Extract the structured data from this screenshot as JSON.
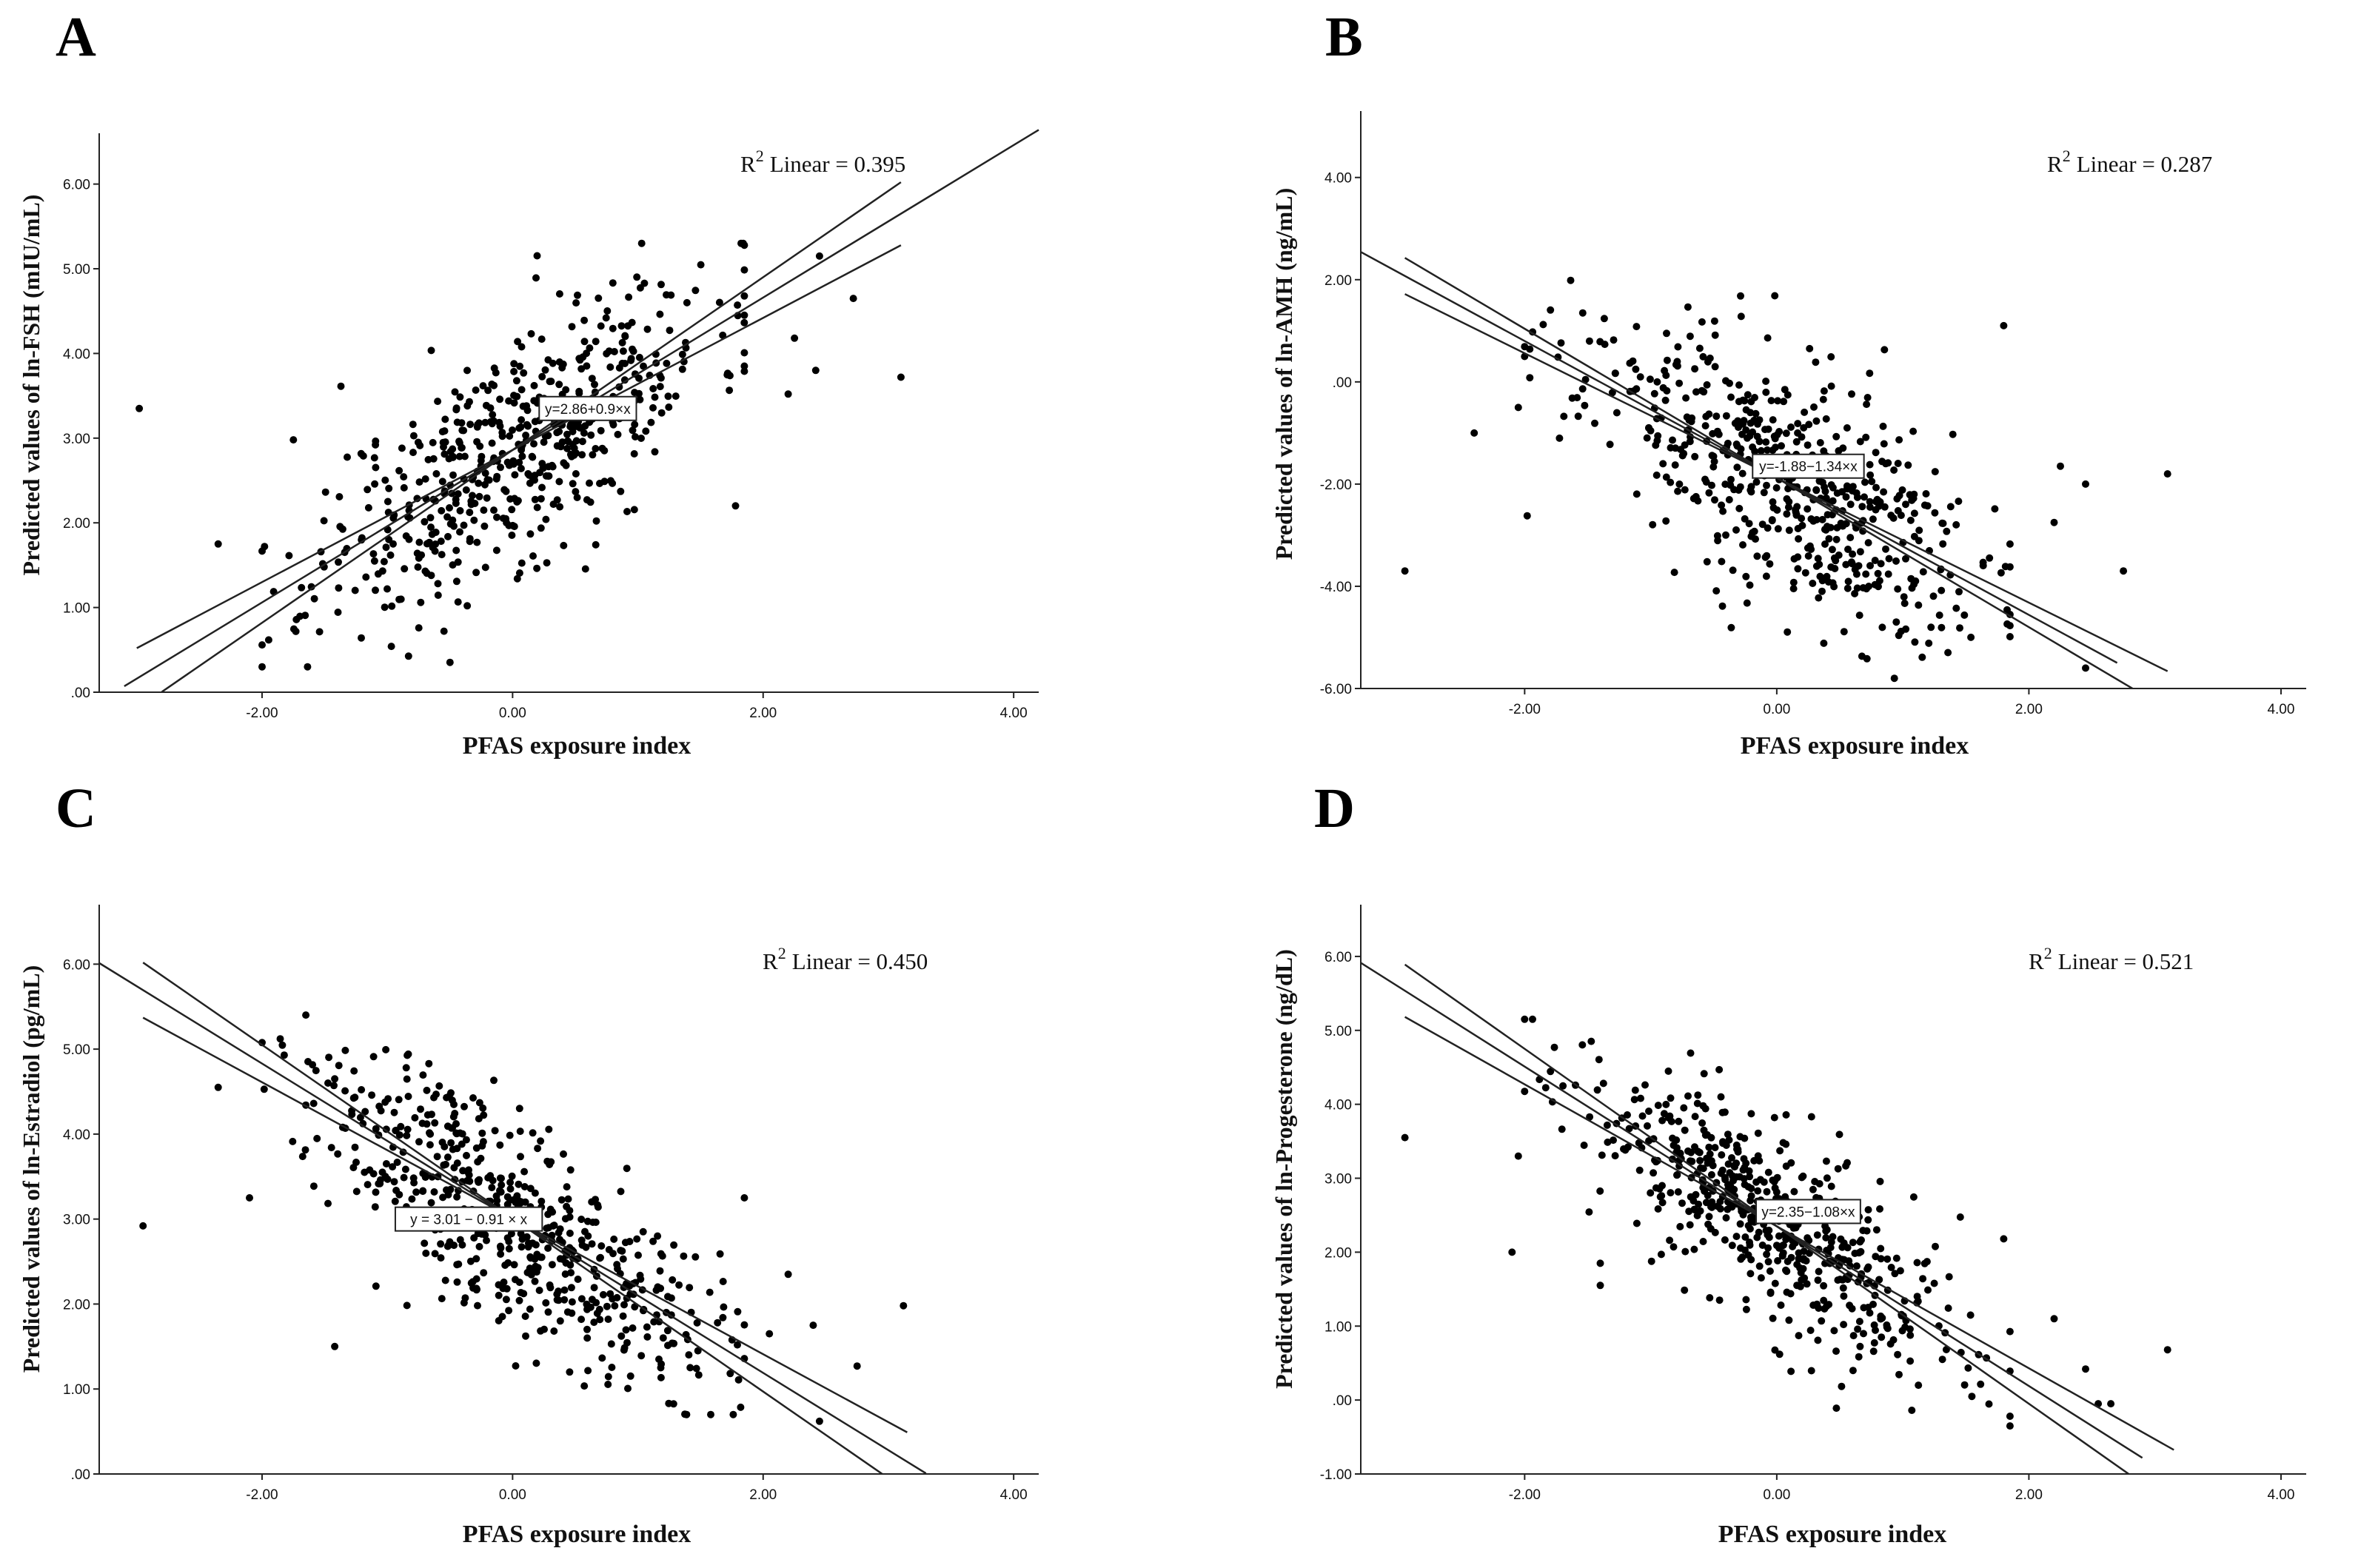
{
  "chart_data": [
    {
      "panel": "A",
      "type": "scatter",
      "xlabel": "PFAS exposure index",
      "ylabel": "Predicted values of ln-FSH (mIU/mL)",
      "xlim": [
        -3.3,
        4.2
      ],
      "ylim": [
        0,
        6.6
      ],
      "xticks": [
        "-2.00",
        "0.00",
        "2.00",
        "4.00"
      ],
      "xtick_values": [
        -2,
        0,
        2,
        4
      ],
      "yticks": [
        ".00",
        "1.00",
        "2.00",
        "3.00",
        "4.00",
        "5.00",
        "6.00"
      ],
      "ytick_values": [
        0,
        1,
        2,
        3,
        4,
        5,
        6
      ],
      "r2_label": "Linear = 0.395",
      "r2_prefix": "R",
      "r2_sup": "2",
      "equation": "y=2.86+0.9×x",
      "equation_at": [
        0.6,
        3.35
      ],
      "fit": {
        "intercept": 2.86,
        "slope": 0.9,
        "x_range": [
          -3.1,
          4.2
        ]
      },
      "ci_lower": {
        "intercept": 2.86,
        "slope": 0.78,
        "x_range": [
          -3.0,
          3.1
        ]
      },
      "ci_upper": {
        "intercept": 2.86,
        "slope": 1.02,
        "x_range": [
          -2.8,
          3.1
        ]
      },
      "n_points": 560,
      "seed": 11,
      "noise_sd": 0.95,
      "y_clip": [
        0.3,
        5.3
      ],
      "extra_points": [
        [
          -2.98,
          3.35
        ],
        [
          -1.75,
          2.98
        ],
        [
          -1.98,
          1.72
        ],
        [
          2.45,
          5.15
        ],
        [
          2.72,
          4.65
        ],
        [
          3.1,
          3.72
        ],
        [
          2.25,
          4.18
        ],
        [
          1.78,
          2.2
        ],
        [
          2.42,
          3.8
        ],
        [
          2.2,
          3.52
        ],
        [
          -2.35,
          1.75
        ]
      ]
    },
    {
      "panel": "B",
      "type": "scatter",
      "xlabel": "PFAS exposure index",
      "ylabel": "Predicted values of ln-AMH (ng/mL)",
      "xlim": [
        -3.3,
        4.2
      ],
      "ylim": [
        -6,
        5.3
      ],
      "xticks": [
        "-2.00",
        "0.00",
        "2.00",
        "4.00"
      ],
      "xtick_values": [
        -2,
        0,
        2,
        4
      ],
      "yticks": [
        "-6.00",
        "-4.00",
        "-2.00",
        ".00",
        "2.00",
        "4.00"
      ],
      "ytick_values": [
        -6,
        -4,
        -2,
        0,
        2,
        4
      ],
      "r2_label": "Linear = 0.287",
      "r2_prefix": "R",
      "r2_sup": "2",
      "equation": "y=-1.88−1.34×x",
      "equation_at": [
        0.25,
        -1.65
      ],
      "fit": {
        "intercept": -1.88,
        "slope": -1.34,
        "x_range": [
          -3.3,
          2.7
        ]
      },
      "ci_lower": {
        "intercept": -1.88,
        "slope": -1.22,
        "x_range": [
          -2.95,
          3.1
        ]
      },
      "ci_upper": {
        "intercept": -1.88,
        "slope": -1.46,
        "x_range": [
          -2.95,
          2.9
        ]
      },
      "n_points": 560,
      "seed": 23,
      "noise_sd": 1.6,
      "y_clip": [
        -5.8,
        2.2
      ],
      "extra_points": [
        [
          -2.95,
          -3.7
        ],
        [
          -2.4,
          -1.0
        ],
        [
          -2.05,
          -0.5
        ],
        [
          -1.98,
          -2.62
        ],
        [
          1.8,
          1.1
        ],
        [
          2.25,
          -1.65
        ],
        [
          2.45,
          -2.0
        ],
        [
          2.75,
          -3.7
        ],
        [
          3.1,
          -1.8
        ],
        [
          2.2,
          -2.75
        ],
        [
          2.45,
          -5.6
        ]
      ]
    },
    {
      "panel": "C",
      "type": "scatter",
      "xlabel": "PFAS exposure index",
      "ylabel": "Predicted values of ln-Estradiol (pg/mL)",
      "xlim": [
        -3.3,
        4.2
      ],
      "ylim": [
        0,
        6.7
      ],
      "xticks": [
        "-2.00",
        "0.00",
        "2.00",
        "4.00"
      ],
      "xtick_values": [
        -2,
        0,
        2,
        4
      ],
      "yticks": [
        ".00",
        "1.00",
        "2.00",
        "3.00",
        "4.00",
        "5.00",
        "6.00"
      ],
      "ytick_values": [
        0,
        1,
        2,
        3,
        4,
        5,
        6
      ],
      "r2_label": "Linear = 0.450",
      "r2_prefix": "R",
      "r2_sup": "2",
      "equation": "y = 3.01 − 0.91 × x",
      "equation_at": [
        -0.35,
        3.0
      ],
      "fit": {
        "intercept": 3.01,
        "slope": -0.91,
        "x_range": [
          -3.3,
          3.3
        ]
      },
      "ci_lower": {
        "intercept": 3.01,
        "slope": -0.8,
        "x_range": [
          -2.95,
          3.15
        ]
      },
      "ci_upper": {
        "intercept": 3.01,
        "slope": -1.02,
        "x_range": [
          -2.95,
          3.1
        ]
      },
      "n_points": 560,
      "seed": 37,
      "noise_sd": 0.85,
      "y_clip": [
        0.7,
        5.7
      ],
      "extra_points": [
        [
          -2.95,
          2.92
        ],
        [
          -2.1,
          3.25
        ],
        [
          -1.42,
          1.5
        ],
        [
          2.2,
          2.35
        ],
        [
          2.45,
          0.62
        ],
        [
          2.4,
          1.75
        ],
        [
          2.75,
          1.27
        ],
        [
          3.12,
          1.98
        ],
        [
          1.85,
          3.25
        ],
        [
          2.05,
          1.65
        ],
        [
          -2.35,
          4.55
        ]
      ]
    },
    {
      "panel": "D",
      "type": "scatter",
      "xlabel": "PFAS exposure index",
      "ylabel": "Predicted values of ln-Progesterone (ng/dL)",
      "xlim": [
        -3.3,
        4.2
      ],
      "ylim": [
        -1,
        6.7
      ],
      "xticks": [
        "-2.00",
        "0.00",
        "2.00",
        "4.00"
      ],
      "xtick_values": [
        -2,
        0,
        2,
        4
      ],
      "yticks": [
        "-1.00",
        ".00",
        "1.00",
        "2.00",
        "3.00",
        "4.00",
        "5.00",
        "6.00"
      ],
      "ytick_values": [
        -1,
        0,
        1,
        2,
        3,
        4,
        5,
        6
      ],
      "r2_label": "Linear = 0.521",
      "r2_prefix": "R",
      "r2_sup": "2",
      "equation": "y=2.35−1.08×x",
      "equation_at": [
        0.25,
        2.55
      ],
      "fit": {
        "intercept": 2.35,
        "slope": -1.08,
        "x_range": [
          -3.3,
          2.9
        ]
      },
      "ci_lower": {
        "intercept": 2.35,
        "slope": -0.96,
        "x_range": [
          -2.95,
          3.15
        ]
      },
      "ci_upper": {
        "intercept": 2.35,
        "slope": -1.2,
        "x_range": [
          -2.95,
          3.0
        ]
      },
      "n_points": 560,
      "seed": 53,
      "noise_sd": 0.9,
      "y_clip": [
        -0.35,
        5.15
      ],
      "extra_points": [
        [
          -2.95,
          3.55
        ],
        [
          -2.1,
          2.0
        ],
        [
          -2.05,
          3.3
        ],
        [
          1.8,
          2.18
        ],
        [
          2.2,
          1.1
        ],
        [
          2.45,
          0.42
        ],
        [
          2.55,
          -0.05
        ],
        [
          2.65,
          -0.05
        ],
        [
          3.1,
          0.68
        ],
        [
          -1.4,
          1.55
        ],
        [
          -1.4,
          1.85
        ]
      ]
    }
  ]
}
